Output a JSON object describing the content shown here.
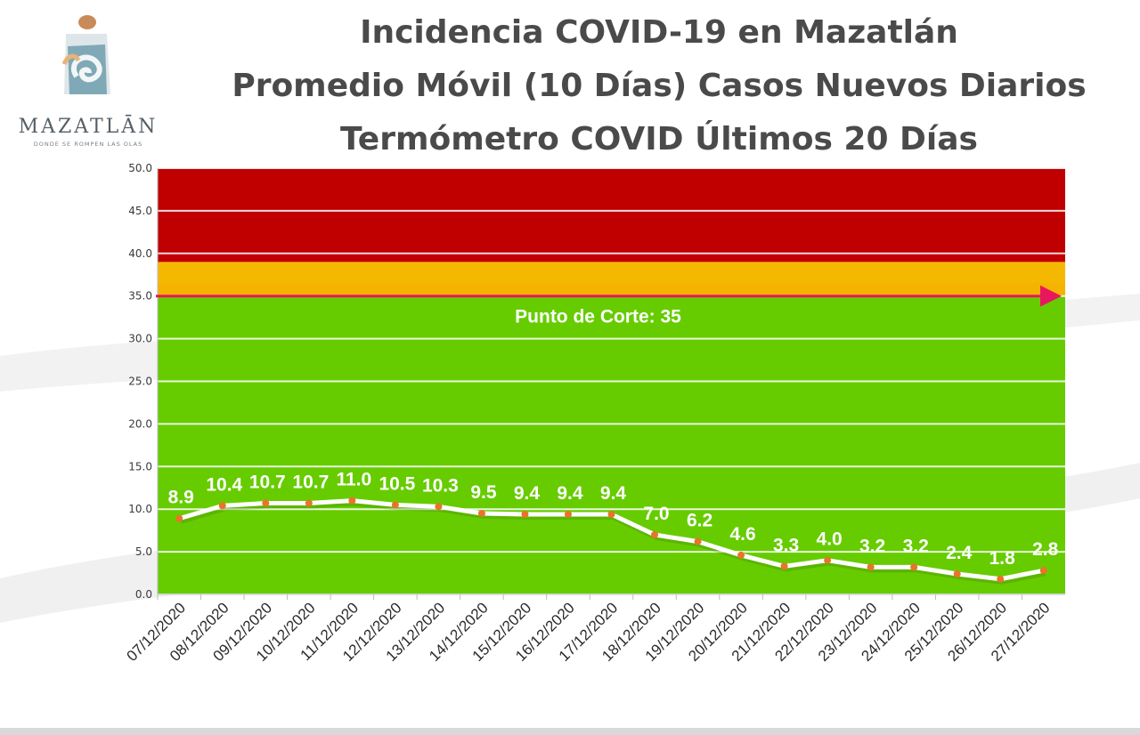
{
  "logo": {
    "wordmark": "MAZATLĀN",
    "tagline": "DONDE SE ROMPEN LAS OLAS",
    "icon": "mazatlan-wave-logo"
  },
  "title": {
    "line1": "Incidencia COVID-19 en Mazatlán",
    "line2": "Promedio Móvil (10 Días) Casos Nuevos Diarios",
    "line3": "Termómetro COVID Últimos 20 Días"
  },
  "chart_data": {
    "type": "line",
    "categories": [
      "07/12/2020",
      "08/12/2020",
      "09/12/2020",
      "10/12/2020",
      "11/12/2020",
      "12/12/2020",
      "13/12/2020",
      "14/12/2020",
      "15/12/2020",
      "16/12/2020",
      "17/12/2020",
      "18/12/2020",
      "19/12/2020",
      "20/12/2020",
      "21/12/2020",
      "22/12/2020",
      "23/12/2020",
      "24/12/2020",
      "25/12/2020",
      "26/12/2020",
      "27/12/2020"
    ],
    "values": [
      8.9,
      10.4,
      10.7,
      10.7,
      11.0,
      10.5,
      10.3,
      9.5,
      9.4,
      9.4,
      9.4,
      7.0,
      6.2,
      4.6,
      3.3,
      4.0,
      3.2,
      3.2,
      2.4,
      1.8,
      2.8
    ],
    "data_labels": [
      "8.9",
      "10.4",
      "10.7",
      "10.7",
      "11.0",
      "10.5",
      "10.3",
      "9.5",
      "9.4",
      "9.4",
      "9.4",
      "7.0",
      "6.2",
      "4.6",
      "3.3",
      "4.0",
      "3.2",
      "3.2",
      "2.4",
      "1.8",
      "2.8"
    ],
    "yticks": [
      "0.0",
      "5.0",
      "10.0",
      "15.0",
      "20.0",
      "25.0",
      "30.0",
      "35.0",
      "40.0",
      "45.0",
      "50.0"
    ],
    "ylim": [
      0,
      50
    ],
    "grid": true,
    "bands": [
      {
        "from": 0,
        "to": 35,
        "color": "#66cc00"
      },
      {
        "from": 35,
        "to": 39,
        "color": "#f5b800"
      },
      {
        "from": 39,
        "to": 50,
        "color": "#c00000"
      }
    ],
    "cutoff": {
      "value": 35,
      "label": "Punto de Corte: 35",
      "color": "#e8175d"
    },
    "line_color": "#ffffff",
    "marker_color": "#e8742a"
  }
}
